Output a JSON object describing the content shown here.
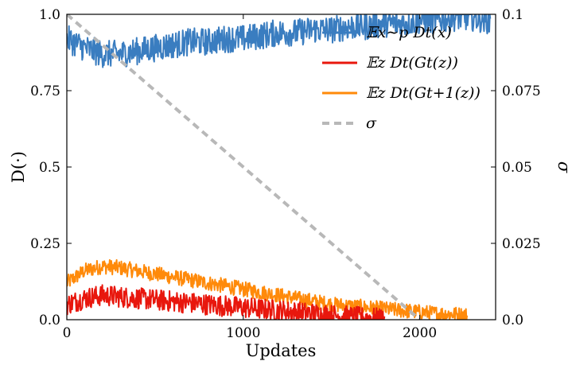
{
  "chart_data": {
    "type": "line",
    "title": "",
    "xlabel": "Updates",
    "ylabel": "D(·)",
    "ylabel_right": "σ",
    "xlim": [
      0,
      2430
    ],
    "ylim": [
      0,
      1.0
    ],
    "ylim_right": [
      0,
      0.1
    ],
    "xticks": [
      {
        "value": 0,
        "label": "0"
      },
      {
        "value": 1000,
        "label": "1000"
      },
      {
        "value": 2000,
        "label": "2000"
      }
    ],
    "yticks_left": [
      {
        "value": 0,
        "label": "0.0"
      },
      {
        "value": 0.25,
        "label": "0.25"
      },
      {
        "value": 0.5,
        "label": "0.5"
      },
      {
        "value": 0.75,
        "label": "0.75"
      },
      {
        "value": 1.0,
        "label": "1.0"
      }
    ],
    "yticks_right": [
      {
        "value": 0,
        "label": "0.0"
      },
      {
        "value": 0.025,
        "label": "0.025"
      },
      {
        "value": 0.05,
        "label": "0.05"
      },
      {
        "value": 0.075,
        "label": "0.075"
      },
      {
        "value": 0.1,
        "label": "0.1"
      }
    ],
    "legend_position": "top-right",
    "series": [
      {
        "name": "𝔼x∼p Dt(x)",
        "axis": "left",
        "color": "#3a7dc0",
        "style": "solid",
        "x": [
          0,
          100,
          200,
          300,
          400,
          500,
          600,
          700,
          800,
          900,
          1000,
          1100,
          1200,
          1300,
          1400,
          1500,
          1600,
          1700,
          1800,
          1900,
          2000,
          2100,
          2200,
          2300,
          2400
        ],
        "values": [
          0.92,
          0.89,
          0.87,
          0.87,
          0.88,
          0.89,
          0.9,
          0.91,
          0.91,
          0.92,
          0.92,
          0.93,
          0.94,
          0.94,
          0.95,
          0.95,
          0.96,
          0.96,
          0.97,
          0.97,
          0.98,
          0.98,
          0.99,
          0.99,
          0.98
        ],
        "noise": 0.045
      },
      {
        "name": "𝔼z Dt(Gt(z))",
        "axis": "left",
        "color": "#e8170d",
        "style": "solid",
        "x": [
          0,
          100,
          200,
          300,
          400,
          500,
          600,
          700,
          800,
          900,
          1000,
          1100,
          1200,
          1300,
          1400,
          1500,
          1600,
          1700,
          1800
        ],
        "values": [
          0.05,
          0.07,
          0.08,
          0.075,
          0.07,
          0.065,
          0.06,
          0.055,
          0.05,
          0.045,
          0.04,
          0.035,
          0.03,
          0.025,
          0.02,
          0.015,
          0.01,
          0.006,
          0.003
        ],
        "noise": 0.035
      },
      {
        "name": "𝔼z Dt(Gt+1(z))",
        "axis": "left",
        "color": "#ff8a0a",
        "style": "solid",
        "x": [
          0,
          100,
          200,
          300,
          400,
          500,
          600,
          700,
          800,
          900,
          1000,
          1100,
          1200,
          1300,
          1400,
          1500,
          1600,
          1700,
          1800,
          1900,
          2000,
          2100,
          2200,
          2270
        ],
        "values": [
          0.12,
          0.16,
          0.175,
          0.17,
          0.16,
          0.15,
          0.14,
          0.13,
          0.12,
          0.11,
          0.1,
          0.09,
          0.08,
          0.07,
          0.06,
          0.05,
          0.045,
          0.04,
          0.035,
          0.03,
          0.025,
          0.02,
          0.018,
          0.015
        ],
        "noise": 0.025
      },
      {
        "name": "σ",
        "axis": "right",
        "color": "#b8b8b8",
        "style": "dashed",
        "x": [
          0,
          2000
        ],
        "values": [
          0.1,
          0.0
        ]
      }
    ]
  }
}
